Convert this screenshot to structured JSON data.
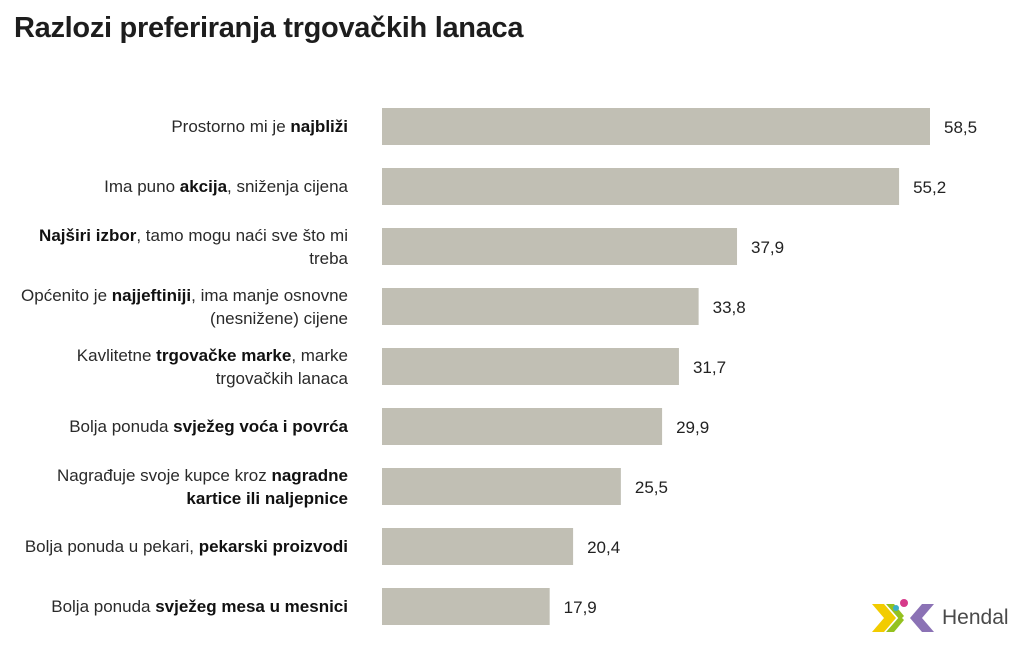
{
  "title": "Razlozi preferiranja trgovačkih lanaca",
  "brand": {
    "name": "Hendal",
    "colors": {
      "yellow": "#f2cc00",
      "green": "#94c11f",
      "purple": "#8b72b5",
      "magenta": "#d63a8a",
      "teal": "#3ab0c8"
    }
  },
  "chart_data": {
    "type": "bar",
    "orientation": "horizontal",
    "title": "Razlozi preferiranja trgovačkih lanaca",
    "xlabel": "",
    "ylabel": "",
    "bar_color": "#c1bfb4",
    "xlim": [
      0,
      60
    ],
    "grid": false,
    "categories": [
      [
        {
          "t": "Prostorno mi je ",
          "b": false
        },
        {
          "t": "najbliži",
          "b": true
        }
      ],
      [
        {
          "t": "Ima puno ",
          "b": false
        },
        {
          "t": "akcija",
          "b": true
        },
        {
          "t": ", sniženja cijena",
          "b": false
        }
      ],
      [
        {
          "t": "Najširi izbor",
          "b": true
        },
        {
          "t": ", tamo mogu naći sve što mi treba",
          "b": false
        }
      ],
      [
        {
          "t": "Općenito je ",
          "b": false
        },
        {
          "t": "najjeftiniji",
          "b": true
        },
        {
          "t": ", ima manje osnovne (nesnižene) cijene",
          "b": false
        }
      ],
      [
        {
          "t": "Kavlitetne ",
          "b": false
        },
        {
          "t": "trgovačke marke",
          "b": true
        },
        {
          "t": ", marke trgovačkih lanaca",
          "b": false
        }
      ],
      [
        {
          "t": "Bolja ponuda ",
          "b": false
        },
        {
          "t": "svježeg voća i povrća",
          "b": true
        }
      ],
      [
        {
          "t": "Nagrađuje svoje kupce kroz ",
          "b": false
        },
        {
          "t": "nagradne kartice ili naljepnice",
          "b": true
        }
      ],
      [
        {
          "t": "Bolja ponuda u pekari, ",
          "b": false
        },
        {
          "t": "pekarski proizvodi",
          "b": true
        }
      ],
      [
        {
          "t": "Bolja ponuda ",
          "b": false
        },
        {
          "t": "svježeg mesa u mesnici",
          "b": true
        }
      ]
    ],
    "values": [
      58.5,
      55.2,
      37.9,
      33.8,
      31.7,
      29.9,
      25.5,
      20.4,
      17.9
    ],
    "value_labels": [
      "58,5",
      "55,2",
      "37,9",
      "33,8",
      "31,7",
      "29,9",
      "25,5",
      "20,4",
      "17,9"
    ]
  }
}
